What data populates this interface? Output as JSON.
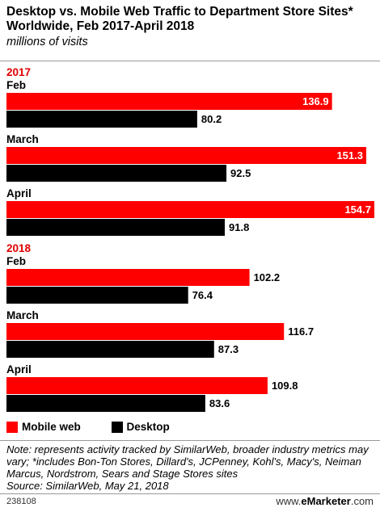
{
  "title": "Desktop vs. Mobile Web Traffic to Department Store Sites* Worldwide, Feb 2017-April 2018",
  "subtitle": "millions of visits",
  "colors": {
    "mobile": "#ff0000",
    "desktop": "#000000",
    "year_label": "#e00000"
  },
  "legend": {
    "mobile": "Mobile web",
    "desktop": "Desktop"
  },
  "note": "Note: represents activity tracked by SimilarWeb, broader industry metrics may vary; *includes Bon-Ton Stores, Dillard's, JCPenney, Kohl's, Macy's, Neiman Marcus, Nordstrom, Sears and Stage Stores sites",
  "source": "Source: SimilarWeb, May 21, 2018",
  "footer": {
    "id": "238108",
    "brand_prefix": "www.",
    "brand_name": "eMarketer",
    "brand_suffix": ".com"
  },
  "chart_data": {
    "type": "bar",
    "orientation": "horizontal",
    "groups": [
      {
        "year": "2017",
        "months": [
          {
            "label": "Feb",
            "mobile": 136.9,
            "desktop": 80.2
          },
          {
            "label": "March",
            "mobile": 151.3,
            "desktop": 92.5
          },
          {
            "label": "April",
            "mobile": 154.7,
            "desktop": 91.8
          }
        ]
      },
      {
        "year": "2018",
        "months": [
          {
            "label": "Feb",
            "mobile": 102.2,
            "desktop": 76.4
          },
          {
            "label": "March",
            "mobile": 116.7,
            "desktop": 87.3
          },
          {
            "label": "April",
            "mobile": 109.8,
            "desktop": 83.6
          }
        ]
      }
    ],
    "series": [
      {
        "name": "Mobile web",
        "key": "mobile"
      },
      {
        "name": "Desktop",
        "key": "desktop"
      }
    ],
    "xlim": [
      0,
      154.7
    ]
  }
}
